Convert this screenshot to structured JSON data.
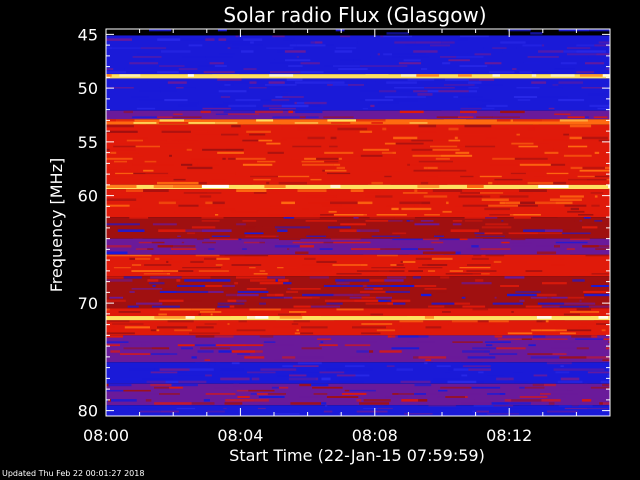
{
  "chart_data": {
    "type": "heatmap",
    "title": "Solar radio Flux (Glasgow)",
    "xlabel": "Start Time (22-Jan-15 07:59:59)",
    "ylabel": "Frequency [MHz]",
    "x_ticks": [
      "08:00",
      "08:04",
      "08:08",
      "08:12"
    ],
    "x_tick_minutes": [
      0,
      4,
      8,
      12
    ],
    "x_range_minutes": [
      0,
      15
    ],
    "y_ticks": [
      "45",
      "50",
      "55",
      "60",
      "70",
      "80"
    ],
    "y_tick_values": [
      45,
      50,
      55,
      60,
      70,
      80
    ],
    "y_range_mhz": [
      44.5,
      80.5
    ],
    "y_reversed": true,
    "frequency_bands": [
      {
        "mhz": [
          44.5,
          45.1
        ],
        "level": "black"
      },
      {
        "mhz": [
          45.1,
          48.7
        ],
        "level": "blue"
      },
      {
        "mhz": [
          48.7,
          49.1
        ],
        "level": "yellow"
      },
      {
        "mhz": [
          49.1,
          52.1
        ],
        "level": "blue"
      },
      {
        "mhz": [
          52.1,
          52.9
        ],
        "level": "purple"
      },
      {
        "mhz": [
          52.9,
          53.4
        ],
        "level": "orange"
      },
      {
        "mhz": [
          53.4,
          59.0
        ],
        "level": "red"
      },
      {
        "mhz": [
          59.0,
          59.4
        ],
        "level": "yellow"
      },
      {
        "mhz": [
          59.4,
          62.0
        ],
        "level": "red"
      },
      {
        "mhz": [
          62.0,
          64.0
        ],
        "level": "darkred"
      },
      {
        "mhz": [
          64.0,
          65.5
        ],
        "level": "purple"
      },
      {
        "mhz": [
          65.5,
          67.5
        ],
        "level": "red"
      },
      {
        "mhz": [
          67.5,
          70.5
        ],
        "level": "darkred"
      },
      {
        "mhz": [
          70.5,
          71.2
        ],
        "level": "red"
      },
      {
        "mhz": [
          71.2,
          71.6
        ],
        "level": "yellow"
      },
      {
        "mhz": [
          71.6,
          73.0
        ],
        "level": "red"
      },
      {
        "mhz": [
          73.0,
          75.5
        ],
        "level": "purple"
      },
      {
        "mhz": [
          75.5,
          77.5
        ],
        "level": "blue"
      },
      {
        "mhz": [
          77.5,
          79.5
        ],
        "level": "purple"
      },
      {
        "mhz": [
          79.5,
          80.5
        ],
        "level": "blue"
      }
    ],
    "colors": {
      "black": "#000000",
      "blue": "#1a1ad8",
      "purple": "#6a1a9a",
      "darkred": "#a01010",
      "red": "#e01a0a",
      "orange": "#ff6a10",
      "yellow": "#ffe060"
    }
  },
  "footer": "Updated Thu Feb 22 00:01:27 2018"
}
